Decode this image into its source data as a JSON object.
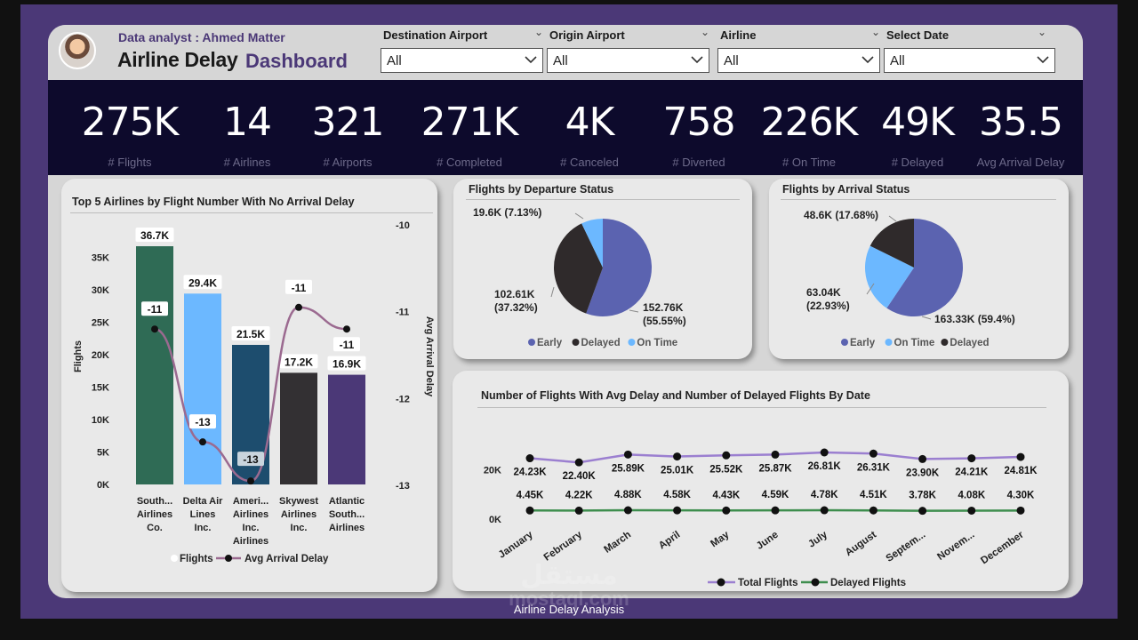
{
  "header": {
    "analyst": "Data analyst : Ahmed Matter",
    "title_main": "Airline Delay",
    "title_accent": "Dashboard"
  },
  "filters": [
    {
      "label": "Destination Airport",
      "value": "All"
    },
    {
      "label": "Origin Airport",
      "value": "All"
    },
    {
      "label": "Airline",
      "value": "All"
    },
    {
      "label": "Select Date",
      "value": "All"
    }
  ],
  "kpis": [
    {
      "value": "275K",
      "label": "# Flights"
    },
    {
      "value": "14",
      "label": "# Airlines"
    },
    {
      "value": "321",
      "label": "# Airports"
    },
    {
      "value": "271K",
      "label": "# Completed"
    },
    {
      "value": "4K",
      "label": "# Canceled"
    },
    {
      "value": "758",
      "label": "# Diverted"
    },
    {
      "value": "226K",
      "label": "# On Time"
    },
    {
      "value": "49K",
      "label": "# Delayed"
    },
    {
      "value": "35.5",
      "label": "Avg Arrival Delay"
    }
  ],
  "colors": {
    "frame": "#4b3877",
    "kpi_band": "#0d0a2c",
    "early": "#5b63b0",
    "delayed": "#2f2a2b",
    "on_time": "#6cb8ff",
    "line_total": "#9b7fd0",
    "line_delayed": "#3e8e4e",
    "line_avg_delay": "#9b6a90"
  },
  "chart_data": [
    {
      "type": "bar",
      "title": "Top 5 Airlines by Flight Number With No Arrival Delay",
      "categories": [
        "South... Airlines Co.",
        "Delta Air Lines Inc.",
        "Ameri... Airlines Inc. Airlines",
        "Skywest Airlines Inc.",
        "Atlantic South... Airlines"
      ],
      "category_lines": [
        [
          "South...",
          "Airlines",
          "Co."
        ],
        [
          "Delta Air",
          "Lines",
          "Inc."
        ],
        [
          "Ameri...",
          "Airlines",
          "Inc.",
          "Airlines"
        ],
        [
          "Skywest",
          "Airlines",
          "Inc."
        ],
        [
          "Atlantic",
          "South...",
          "Airlines"
        ]
      ],
      "series": [
        {
          "name": "Flights",
          "values": [
            36700,
            29400,
            21500,
            17200,
            16900
          ],
          "labels": [
            "36.7K",
            "29.4K",
            "21.5K",
            "17.2K",
            "16.9K"
          ],
          "colors": [
            "#2f6b55",
            "#6cb8ff",
            "#1d4d6e",
            "#333033",
            "#4b3877"
          ]
        },
        {
          "name": "Avg Arrival Delay",
          "values": [
            -11.2,
            -12.5,
            -12.95,
            -10.95,
            -11.2
          ],
          "labels": [
            "-11",
            "-13",
            "-13",
            "-11",
            "-11"
          ]
        }
      ],
      "xlabel": "",
      "ylabel": "Flights",
      "y2label": "Avg Arrival Delay",
      "ylim": [
        0,
        36700
      ],
      "y_ticks": [
        0,
        5000,
        10000,
        15000,
        20000,
        25000,
        30000,
        35000
      ],
      "y_tick_labels": [
        "0K",
        "5K",
        "10K",
        "15K",
        "20K",
        "25K",
        "30K",
        "35K"
      ],
      "y2lim": [
        -13,
        -10
      ],
      "y2_ticks": [
        -10,
        -11,
        -12,
        -13
      ],
      "y2_tick_labels": [
        "-10",
        "-11",
        "-12",
        "-13"
      ],
      "legend": [
        "Flights",
        "Avg Arrival Delay"
      ]
    },
    {
      "type": "pie",
      "title": "Flights by Departure Status",
      "slices": [
        {
          "name": "Early",
          "value": 152760,
          "label": "152.76K (55.55%)",
          "label_lines": [
            "152.76K",
            "(55.55%)"
          ]
        },
        {
          "name": "Delayed",
          "value": 102610,
          "label": "102.61K (37.32%)",
          "label_lines": [
            "102.61K",
            "(37.32%)"
          ]
        },
        {
          "name": "On Time",
          "value": 19600,
          "label": "19.6K (7.13%)",
          "label_lines": [
            "19.6K (7.13%)"
          ]
        }
      ],
      "legend": [
        "Early",
        "Delayed",
        "On Time"
      ]
    },
    {
      "type": "pie",
      "title": "Flights by Arrival Status",
      "slices": [
        {
          "name": "Early",
          "value": 163330,
          "label": "163.33K (59.4%)",
          "label_lines": [
            "163.33K (59.4%)"
          ]
        },
        {
          "name": "On Time",
          "value": 63040,
          "label": "63.04K (22.93%)",
          "label_lines": [
            "63.04K",
            "(22.93%)"
          ]
        },
        {
          "name": "Delayed",
          "value": 48600,
          "label": "48.6K (17.68%)",
          "label_lines": [
            "48.6K (17.68%)"
          ]
        }
      ],
      "legend": [
        "Early",
        "On Time",
        "Delayed"
      ]
    },
    {
      "type": "line",
      "title": "Number of Flights With Avg Delay and Number of Delayed Flights By Date",
      "categories": [
        "January",
        "February",
        "March",
        "April",
        "May",
        "June",
        "July",
        "August",
        "Septem...",
        "Novem...",
        "December"
      ],
      "series": [
        {
          "name": "Total Flights",
          "values": [
            24230,
            22400,
            25890,
            25010,
            25520,
            25870,
            26810,
            26310,
            23900,
            24210,
            24810
          ],
          "labels": [
            "24.23K",
            "22.40K",
            "25.89K",
            "25.01K",
            "25.52K",
            "25.87K",
            "26.81K",
            "26.31K",
            "23.90K",
            "24.21K",
            "24.81K"
          ]
        },
        {
          "name": "Delayed Flights",
          "values": [
            4450,
            4220,
            4880,
            4580,
            4430,
            4590,
            4780,
            4510,
            3780,
            4080,
            4300
          ],
          "labels": [
            "4.45K",
            "4.22K",
            "4.88K",
            "4.58K",
            "4.43K",
            "4.59K",
            "4.78K",
            "4.51K",
            "3.78K",
            "4.08K",
            "4.30K"
          ]
        }
      ],
      "y_ticks": [
        0,
        20000
      ],
      "y_tick_labels": [
        "0K",
        "20K"
      ],
      "legend": [
        "Total Flights",
        "Delayed Flights"
      ]
    }
  ],
  "footer": {
    "caption": "Airline Delay Analysis",
    "watermark_ar": "مستقل",
    "watermark_en": "mostaql.com"
  }
}
